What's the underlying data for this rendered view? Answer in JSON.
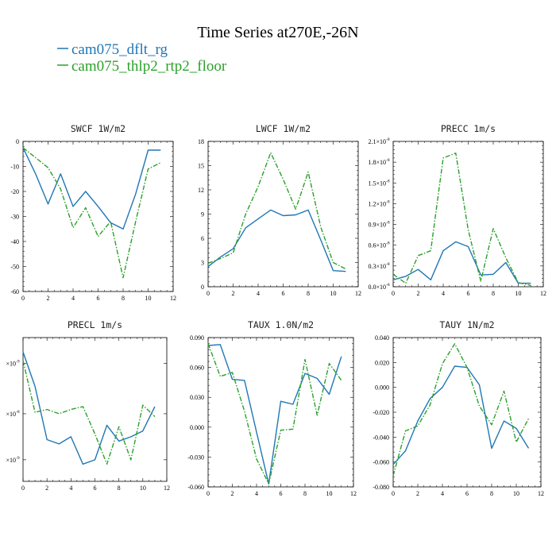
{
  "figure": {
    "title": "Time Series at270E,-26N",
    "legend": [
      {
        "label": "cam075_dflt_rg",
        "color": "#1f77b4",
        "dash": "solid"
      },
      {
        "label": "cam075_thlp2_rtp2_floor",
        "color": "#2ca02c",
        "dash": "dashdot"
      }
    ]
  },
  "chart_data": [
    {
      "type": "line",
      "title": "SWCF  1W/m2",
      "x": [
        0,
        1,
        2,
        3,
        4,
        5,
        6,
        7,
        8,
        9,
        10,
        11
      ],
      "xlim": [
        0,
        12
      ],
      "xticks": [
        "0",
        "2",
        "4",
        "6",
        "8",
        "10",
        "12"
      ],
      "ylim": [
        -60,
        0
      ],
      "yticks": [
        "-60",
        "-50",
        "-40",
        "-30",
        "-20",
        "-10",
        "0"
      ],
      "series": [
        {
          "name": "cam075_dflt_rg",
          "values": [
            -2.5,
            -13,
            -25,
            -13,
            -26,
            -20,
            -26,
            -32.5,
            -35,
            -21,
            -3.5,
            -3.5
          ]
        },
        {
          "name": "cam075_thlp2_rtp2_floor",
          "values": [
            -2.5,
            -6.5,
            -10.5,
            -19,
            -34.5,
            -26.5,
            -38,
            -32,
            -54.5,
            -32,
            -11,
            -8.5
          ]
        }
      ]
    },
    {
      "type": "line",
      "title": "LWCF  1W/m2",
      "x": [
        0,
        1,
        2,
        3,
        4,
        5,
        6,
        7,
        8,
        9,
        10,
        11
      ],
      "xlim": [
        0,
        12
      ],
      "xticks": [
        "0",
        "2",
        "4",
        "6",
        "8",
        "10",
        "12"
      ],
      "ylim": [
        0,
        18
      ],
      "yticks": [
        "0",
        "3",
        "6",
        "9",
        "12",
        "15",
        "18"
      ],
      "series": [
        {
          "name": "cam075_dflt_rg",
          "values": [
            2.5,
            3.7,
            4.7,
            7.3,
            8.4,
            9.5,
            8.8,
            8.9,
            9.5,
            5.8,
            2.0,
            1.9
          ]
        },
        {
          "name": "cam075_thlp2_rtp2_floor",
          "values": [
            2.9,
            3.5,
            4.2,
            9.0,
            12.4,
            16.6,
            13.3,
            9.6,
            14.2,
            7.4,
            3.0,
            2.2
          ]
        }
      ]
    },
    {
      "type": "line",
      "title": "PRECC  1m/s",
      "x": [
        0,
        1,
        2,
        3,
        4,
        5,
        6,
        7,
        8,
        9,
        10,
        11
      ],
      "xlim": [
        0,
        12
      ],
      "xticks": [
        "0",
        "2",
        "4",
        "6",
        "8",
        "10",
        "12"
      ],
      "ylim": [
        0,
        2.1
      ],
      "yticks": [
        {
          "m": "0.0×10",
          "e": "-8"
        },
        {
          "m": "0.3×10",
          "e": "-8"
        },
        {
          "m": "0.6×10",
          "e": "-8"
        },
        {
          "m": "0.9×10",
          "e": "-8"
        },
        {
          "m": "1.2×10",
          "e": "-8"
        },
        {
          "m": "1.5×10",
          "e": "-8"
        },
        {
          "m": "1.8×10",
          "e": "-8"
        },
        {
          "m": "2.1×10",
          "e": "-8"
        }
      ],
      "series": [
        {
          "name": "cam075_dflt_rg",
          "values": [
            0.1,
            0.15,
            0.25,
            0.1,
            0.52,
            0.65,
            0.58,
            0.17,
            0.18,
            0.35,
            0.05,
            0.05
          ]
        },
        {
          "name": "cam075_thlp2_rtp2_floor",
          "values": [
            0.18,
            0.05,
            0.45,
            0.52,
            1.86,
            1.93,
            0.82,
            0.08,
            0.84,
            0.42,
            0.06,
            0.02
          ]
        }
      ]
    },
    {
      "type": "line",
      "title": "PRECL  1m/s",
      "x": [
        0,
        1,
        2,
        3,
        4,
        5,
        6,
        7,
        8,
        9,
        10,
        11
      ],
      "xlim": [
        0,
        12
      ],
      "xticks": [
        "0",
        "2",
        "4",
        "6",
        "8",
        "10",
        "12"
      ],
      "ylim": [
        0,
        1
      ],
      "yticks": [
        {
          "v": 0.82,
          "m": "×10",
          "e": "-9"
        },
        {
          "v": 0.47,
          "m": "×10",
          "e": "-8"
        },
        {
          "v": 0.15,
          "m": "×10",
          "e": "-9"
        }
      ],
      "series": [
        {
          "name": "cam075_dflt_rg",
          "values": [
            0.9,
            0.66,
            0.29,
            0.26,
            0.31,
            0.12,
            0.15,
            0.39,
            0.28,
            0.31,
            0.35,
            0.52
          ]
        },
        {
          "name": "cam075_thlp2_rtp2_floor",
          "values": [
            0.84,
            0.48,
            0.5,
            0.47,
            0.5,
            0.52,
            0.33,
            0.12,
            0.38,
            0.15,
            0.53,
            0.45
          ]
        }
      ]
    },
    {
      "type": "line",
      "title": "TAUX  1.0N/m2",
      "x": [
        0,
        1,
        2,
        3,
        4,
        5,
        6,
        7,
        8,
        9,
        10,
        11
      ],
      "xlim": [
        0,
        12
      ],
      "xticks": [
        "0",
        "2",
        "4",
        "6",
        "8",
        "10",
        "12"
      ],
      "ylim": [
        -0.06,
        0.09
      ],
      "yticks": [
        "-0.060",
        "-0.030",
        "0.000",
        "0.030",
        "0.060",
        "0.090"
      ],
      "series": [
        {
          "name": "cam075_dflt_rg",
          "values": [
            0.082,
            0.083,
            0.048,
            0.047,
            -0.005,
            -0.057,
            0.026,
            0.023,
            0.054,
            0.049,
            0.033,
            0.071
          ]
        },
        {
          "name": "cam075_thlp2_rtp2_floor",
          "values": [
            0.084,
            0.051,
            0.055,
            0.016,
            -0.032,
            -0.057,
            -0.003,
            -0.002,
            0.068,
            0.012,
            0.064,
            0.047
          ]
        }
      ]
    },
    {
      "type": "line",
      "title": "TAUY  1N/m2",
      "x": [
        0,
        1,
        2,
        3,
        4,
        5,
        6,
        7,
        8,
        9,
        10,
        11
      ],
      "xlim": [
        0,
        12
      ],
      "xticks": [
        "0",
        "2",
        "4",
        "6",
        "8",
        "10",
        "12"
      ],
      "ylim": [
        -0.08,
        0.04
      ],
      "yticks": [
        "-0.080",
        "-0.060",
        "-0.040",
        "-0.020",
        "0.000",
        "0.020",
        "0.040"
      ],
      "series": [
        {
          "name": "cam075_dflt_rg",
          "values": [
            -0.062,
            -0.051,
            -0.027,
            -0.009,
            0.0,
            0.017,
            0.016,
            0.002,
            -0.049,
            -0.027,
            -0.033,
            -0.049
          ]
        },
        {
          "name": "cam075_thlp2_rtp2_floor",
          "values": [
            -0.071,
            -0.035,
            -0.031,
            -0.014,
            0.019,
            0.035,
            0.016,
            -0.015,
            -0.03,
            -0.003,
            -0.044,
            -0.025
          ]
        }
      ]
    }
  ]
}
